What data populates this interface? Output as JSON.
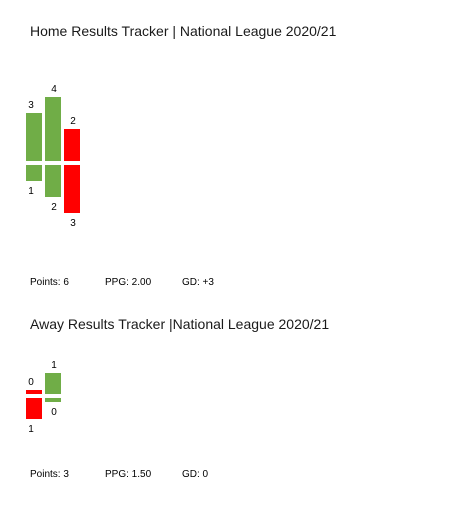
{
  "chart_data": [
    {
      "type": "bar",
      "title": "Home Results Tracker | National League 2020/21",
      "colors": {
        "win": "#70ad47",
        "loss": "#ff0000"
      },
      "bars": [
        {
          "result": "win",
          "above": 3,
          "below": 1
        },
        {
          "result": "win",
          "above": 4,
          "below": 2
        },
        {
          "result": "loss",
          "above": 2,
          "below": 3
        }
      ],
      "stats": {
        "points": "Points: 6",
        "ppg": "PPG: 2.00",
        "gd": "GD: +3"
      }
    },
    {
      "type": "bar",
      "title": "Away Results Tracker |National League 2020/21",
      "colors": {
        "win": "#70ad47",
        "loss": "#ff0000"
      },
      "bars": [
        {
          "result": "loss",
          "above": 0,
          "below": 1
        },
        {
          "result": "win",
          "above": 1,
          "below": 0
        }
      ],
      "stats": {
        "points": "Points: 3",
        "ppg": "PPG: 1.50",
        "gd": "GD: 0"
      }
    }
  ]
}
